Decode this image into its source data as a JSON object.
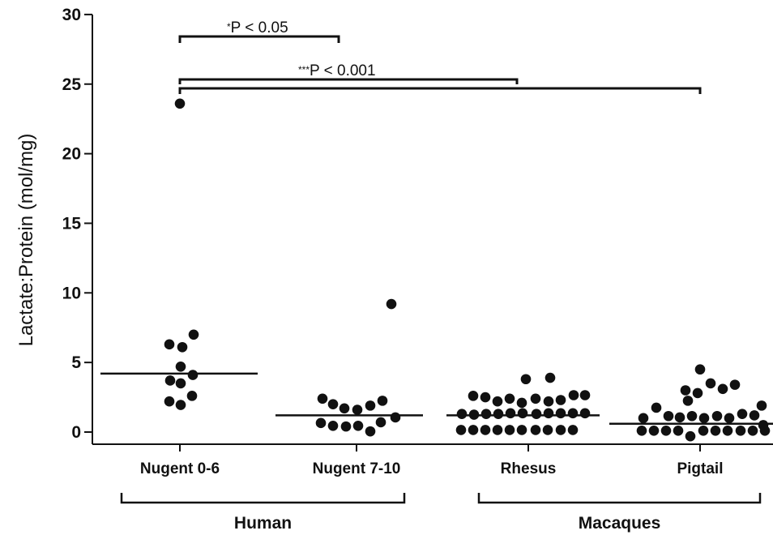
{
  "chart_data": {
    "type": "scatter",
    "ylabel": "Lactate:Protein (mol/mg)",
    "xlabel": "",
    "ylim": [
      0,
      30
    ],
    "yticks": [
      0,
      5,
      10,
      15,
      20,
      25,
      30
    ],
    "categories": [
      "Nugent 0-6",
      "Nugent 7-10",
      "Rhesus",
      "Pigtail"
    ],
    "groups": [
      {
        "label": "Human",
        "categories": [
          "Nugent 0-6",
          "Nugent 7-10"
        ]
      },
      {
        "label": "Macaques",
        "categories": [
          "Rhesus",
          "Pigtail"
        ]
      }
    ],
    "series": [
      {
        "category": "Nugent 0-6",
        "median": 4.2,
        "points": [
          {
            "dx": 0,
            "y": 23.6
          },
          {
            "dx": -13,
            "y": 6.3
          },
          {
            "dx": 3,
            "y": 6.1
          },
          {
            "dx": 17,
            "y": 7.0
          },
          {
            "dx": 1,
            "y": 4.7
          },
          {
            "dx": -12,
            "y": 3.7
          },
          {
            "dx": 1,
            "y": 3.5
          },
          {
            "dx": 16,
            "y": 4.1
          },
          {
            "dx": -13,
            "y": 2.2
          },
          {
            "dx": 1,
            "y": 1.95
          },
          {
            "dx": 15,
            "y": 2.6
          }
        ]
      },
      {
        "category": "Nugent 7-10",
        "median": 1.2,
        "points": [
          {
            "dx": 43,
            "y": 9.2
          },
          {
            "dx": -42,
            "y": 2.4
          },
          {
            "dx": -29,
            "y": 2.0
          },
          {
            "dx": -15,
            "y": 1.7
          },
          {
            "dx": 1,
            "y": 1.6
          },
          {
            "dx": 17,
            "y": 1.9
          },
          {
            "dx": 32,
            "y": 2.25
          },
          {
            "dx": -44,
            "y": 0.65
          },
          {
            "dx": -29,
            "y": 0.45
          },
          {
            "dx": -13,
            "y": 0.4
          },
          {
            "dx": 2,
            "y": 0.45
          },
          {
            "dx": 17,
            "y": 0.05
          },
          {
            "dx": 30,
            "y": 0.7
          },
          {
            "dx": 48,
            "y": 1.05
          }
        ]
      },
      {
        "category": "Rhesus",
        "median": 1.2,
        "points": [
          {
            "dx": -3,
            "y": 3.8
          },
          {
            "dx": 27,
            "y": 3.9
          },
          {
            "dx": -68,
            "y": 2.6
          },
          {
            "dx": -53,
            "y": 2.5
          },
          {
            "dx": -38,
            "y": 2.2
          },
          {
            "dx": -23,
            "y": 2.4
          },
          {
            "dx": -8,
            "y": 2.1
          },
          {
            "dx": 9,
            "y": 2.4
          },
          {
            "dx": 25,
            "y": 2.2
          },
          {
            "dx": 40,
            "y": 2.3
          },
          {
            "dx": 56,
            "y": 2.65
          },
          {
            "dx": 70,
            "y": 2.65
          },
          {
            "dx": -82,
            "y": 1.3
          },
          {
            "dx": -67,
            "y": 1.25
          },
          {
            "dx": -52,
            "y": 1.3
          },
          {
            "dx": -37,
            "y": 1.3
          },
          {
            "dx": -22,
            "y": 1.35
          },
          {
            "dx": -7,
            "y": 1.35
          },
          {
            "dx": 10,
            "y": 1.3
          },
          {
            "dx": 25,
            "y": 1.35
          },
          {
            "dx": 40,
            "y": 1.35
          },
          {
            "dx": 55,
            "y": 1.35
          },
          {
            "dx": 70,
            "y": 1.35
          },
          {
            "dx": -83,
            "y": 0.15
          },
          {
            "dx": -68,
            "y": 0.15
          },
          {
            "dx": -53,
            "y": 0.15
          },
          {
            "dx": -38,
            "y": 0.15
          },
          {
            "dx": -23,
            "y": 0.15
          },
          {
            "dx": -8,
            "y": 0.15
          },
          {
            "dx": 9,
            "y": 0.15
          },
          {
            "dx": 24,
            "y": 0.15
          },
          {
            "dx": 40,
            "y": 0.15
          },
          {
            "dx": 55,
            "y": 0.15
          }
        ]
      },
      {
        "category": "Pigtail",
        "median": 0.6,
        "points": [
          {
            "dx": 0,
            "y": 4.5
          },
          {
            "dx": -18,
            "y": 3.0
          },
          {
            "dx": -3,
            "y": 2.8
          },
          {
            "dx": 13,
            "y": 3.5
          },
          {
            "dx": 28,
            "y": 3.1
          },
          {
            "dx": 43,
            "y": 3.4
          },
          {
            "dx": -54,
            "y": 1.75
          },
          {
            "dx": -15,
            "y": 2.25
          },
          {
            "dx": 76,
            "y": 1.9
          },
          {
            "dx": -70,
            "y": 1.0
          },
          {
            "dx": -39,
            "y": 1.15
          },
          {
            "dx": -25,
            "y": 1.05
          },
          {
            "dx": -10,
            "y": 1.15
          },
          {
            "dx": 5,
            "y": 1.0
          },
          {
            "dx": 21,
            "y": 1.15
          },
          {
            "dx": 36,
            "y": 1.0
          },
          {
            "dx": 52,
            "y": 1.3
          },
          {
            "dx": 67,
            "y": 1.2
          },
          {
            "dx": 78,
            "y": 0.5
          },
          {
            "dx": -72,
            "y": 0.1
          },
          {
            "dx": -57,
            "y": 0.1
          },
          {
            "dx": -42,
            "y": 0.1
          },
          {
            "dx": -27,
            "y": 0.1
          },
          {
            "dx": -12,
            "y": -0.3
          },
          {
            "dx": 4,
            "y": 0.1
          },
          {
            "dx": 19,
            "y": 0.1
          },
          {
            "dx": 34,
            "y": 0.1
          },
          {
            "dx": 50,
            "y": 0.1
          },
          {
            "dx": 65,
            "y": 0.1
          },
          {
            "dx": 80,
            "y": 0.1
          }
        ]
      }
    ],
    "annotations": [
      {
        "stars": "*",
        "text": "P < 0.05",
        "from": "Nugent 0-6",
        "to": "Nugent 7-10"
      },
      {
        "stars": "***",
        "text": "P < 0.001",
        "from": "Nugent 0-6",
        "to": [
          "Rhesus",
          "Pigtail"
        ]
      }
    ]
  }
}
